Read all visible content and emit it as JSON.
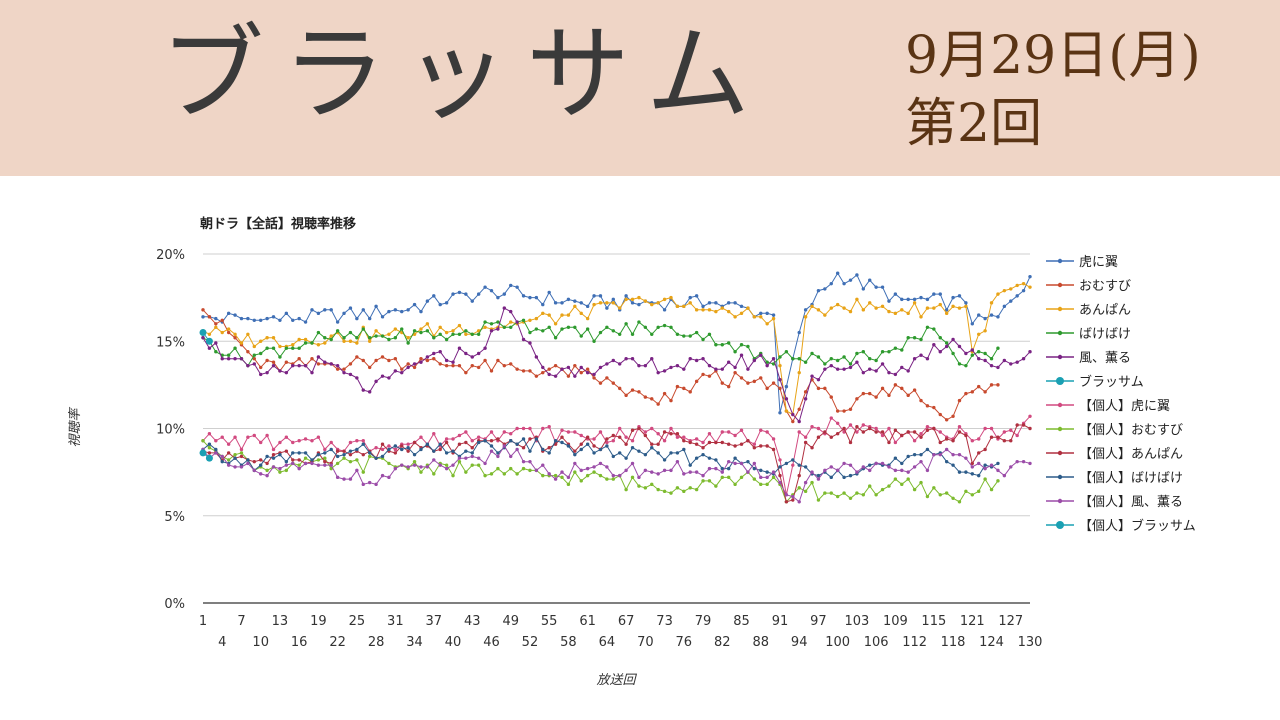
{
  "banner": {
    "title": "ブラッサム",
    "date": "9月29日(月)",
    "episode": "第2回"
  },
  "chart_data": {
    "type": "line",
    "title": "朝ドラ【全話】視聴率推移",
    "xlabel": "放送回",
    "ylabel": "視聴率",
    "xlim": [
      1,
      130
    ],
    "ylim": [
      0,
      20
    ],
    "x_ticks_top": [
      1,
      7,
      13,
      19,
      25,
      31,
      37,
      43,
      49,
      55,
      61,
      67,
      73,
      79,
      85,
      91,
      97,
      103,
      109,
      115,
      121,
      127
    ],
    "x_ticks_bottom": [
      4,
      10,
      16,
      22,
      28,
      34,
      40,
      46,
      52,
      58,
      64,
      70,
      76,
      82,
      88,
      94,
      100,
      106,
      112,
      118,
      124,
      130
    ],
    "y_ticks": [
      "0%",
      "5%",
      "10%",
      "15%",
      "20%"
    ],
    "y_tick_values": [
      0,
      5,
      10,
      15,
      20
    ],
    "grid": true,
    "legend_position": "right",
    "series": [
      {
        "name": "虎に翼",
        "color": "#3f6fb5",
        "marker": "small",
        "start": 1,
        "length": 130,
        "anchors": [
          [
            1,
            16.4
          ],
          [
            10,
            16.2
          ],
          [
            30,
            16.7
          ],
          [
            46,
            17.9
          ],
          [
            60,
            17.2
          ],
          [
            80,
            17.2
          ],
          [
            90,
            16.5
          ],
          [
            91,
            10.9
          ],
          [
            92,
            12.4
          ],
          [
            95,
            16.8
          ],
          [
            100,
            18.9
          ],
          [
            110,
            17.4
          ],
          [
            120,
            17.2
          ],
          [
            121,
            16.0
          ],
          [
            125,
            16.4
          ],
          [
            128,
            17.6
          ],
          [
            130,
            18.7
          ]
        ]
      },
      {
        "name": "おむすび",
        "color": "#c84a2e",
        "marker": "small",
        "start": 1,
        "length": 125,
        "anchors": [
          [
            1,
            16.8
          ],
          [
            5,
            15.5
          ],
          [
            10,
            13.5
          ],
          [
            30,
            13.9
          ],
          [
            50,
            13.4
          ],
          [
            60,
            13.2
          ],
          [
            72,
            11.4
          ],
          [
            80,
            13.0
          ],
          [
            91,
            12.3
          ],
          [
            93,
            10.4
          ],
          [
            96,
            12.8
          ],
          [
            100,
            11.0
          ],
          [
            110,
            12.3
          ],
          [
            118,
            10.7
          ],
          [
            120,
            12.0
          ],
          [
            125,
            12.5
          ]
        ]
      },
      {
        "name": "あんぱん",
        "color": "#e8a317",
        "marker": "small",
        "start": 1,
        "length": 130,
        "anchors": [
          [
            1,
            15.6
          ],
          [
            10,
            15.0
          ],
          [
            30,
            15.4
          ],
          [
            50,
            16.0
          ],
          [
            60,
            16.6
          ],
          [
            70,
            17.3
          ],
          [
            80,
            16.8
          ],
          [
            90,
            16.3
          ],
          [
            92,
            11.0
          ],
          [
            93,
            10.8
          ],
          [
            95,
            16.4
          ],
          [
            100,
            17.1
          ],
          [
            110,
            16.8
          ],
          [
            120,
            17.0
          ],
          [
            121,
            14.4
          ],
          [
            125,
            17.7
          ],
          [
            130,
            18.1
          ]
        ]
      },
      {
        "name": "ばけばけ",
        "color": "#2e9a2e",
        "marker": "small",
        "start": 1,
        "length": 125,
        "anchors": [
          [
            1,
            15.2
          ],
          [
            7,
            14.0
          ],
          [
            20,
            15.2
          ],
          [
            40,
            15.4
          ],
          [
            50,
            16.1
          ],
          [
            60,
            15.3
          ],
          [
            70,
            15.8
          ],
          [
            80,
            15.4
          ],
          [
            90,
            13.7
          ],
          [
            92,
            14.4
          ],
          [
            100,
            13.9
          ],
          [
            110,
            14.5
          ],
          [
            115,
            15.7
          ],
          [
            120,
            13.6
          ],
          [
            125,
            14.6
          ]
        ]
      },
      {
        "name": "風、薫る",
        "color": "#7a2384",
        "marker": "small",
        "start": 1,
        "length": 130,
        "anchors": [
          [
            1,
            15.2
          ],
          [
            5,
            14.0
          ],
          [
            10,
            13.1
          ],
          [
            20,
            13.8
          ],
          [
            27,
            12.1
          ],
          [
            35,
            13.8
          ],
          [
            45,
            14.6
          ],
          [
            48,
            16.9
          ],
          [
            55,
            13.1
          ],
          [
            60,
            13.5
          ],
          [
            63,
            13.5
          ],
          [
            70,
            13.6
          ],
          [
            80,
            13.6
          ],
          [
            90,
            14.0
          ],
          [
            92,
            11.7
          ],
          [
            94,
            10.4
          ],
          [
            96,
            13.0
          ],
          [
            100,
            13.4
          ],
          [
            110,
            13.5
          ],
          [
            118,
            15.1
          ],
          [
            125,
            13.5
          ],
          [
            130,
            14.4
          ]
        ]
      },
      {
        "name": "ブラッサム",
        "color": "#1aa0b3",
        "marker": "large",
        "start": 1,
        "length": 2,
        "values": [
          15.5,
          15.0
        ]
      },
      {
        "name": "【個人】虎に翼",
        "color": "#d24a80",
        "marker": "small",
        "start": 1,
        "length": 130,
        "anchors": [
          [
            1,
            9.3
          ],
          [
            10,
            9.2
          ],
          [
            30,
            9.0
          ],
          [
            46,
            9.8
          ],
          [
            60,
            9.6
          ],
          [
            80,
            9.7
          ],
          [
            90,
            9.4
          ],
          [
            92,
            6.2
          ],
          [
            94,
            9.8
          ],
          [
            100,
            10.3
          ],
          [
            110,
            9.6
          ],
          [
            120,
            9.7
          ],
          [
            128,
            9.6
          ],
          [
            130,
            10.7
          ]
        ]
      },
      {
        "name": "【個人】おむすび",
        "color": "#7dbb2e",
        "marker": "small",
        "start": 1,
        "length": 125,
        "anchors": [
          [
            1,
            9.3
          ],
          [
            10,
            7.8
          ],
          [
            30,
            8.0
          ],
          [
            50,
            7.4
          ],
          [
            65,
            7.1
          ],
          [
            70,
            6.6
          ],
          [
            80,
            7.0
          ],
          [
            90,
            7.2
          ],
          [
            92,
            5.8
          ],
          [
            94,
            6.6
          ],
          [
            100,
            6.1
          ],
          [
            110,
            6.8
          ],
          [
            118,
            6.0
          ],
          [
            120,
            6.4
          ],
          [
            125,
            7.0
          ]
        ]
      },
      {
        "name": "【個人】あんぱん",
        "color": "#b03040",
        "marker": "small",
        "start": 1,
        "length": 130,
        "anchors": [
          [
            1,
            8.7
          ],
          [
            10,
            8.2
          ],
          [
            30,
            8.7
          ],
          [
            50,
            9.1
          ],
          [
            60,
            9.1
          ],
          [
            70,
            9.6
          ],
          [
            80,
            9.2
          ],
          [
            90,
            8.8
          ],
          [
            92,
            5.8
          ],
          [
            93,
            5.9
          ],
          [
            95,
            9.2
          ],
          [
            100,
            9.7
          ],
          [
            110,
            9.6
          ],
          [
            120,
            9.6
          ],
          [
            121,
            8.0
          ],
          [
            125,
            9.5
          ],
          [
            130,
            10.0
          ]
        ]
      },
      {
        "name": "【個人】ばけばけ",
        "color": "#2d5c8a",
        "marker": "small",
        "start": 1,
        "length": 125,
        "anchors": [
          [
            1,
            8.8
          ],
          [
            7,
            7.9
          ],
          [
            20,
            8.6
          ],
          [
            40,
            8.7
          ],
          [
            50,
            9.1
          ],
          [
            60,
            8.8
          ],
          [
            70,
            8.5
          ],
          [
            80,
            8.3
          ],
          [
            90,
            7.4
          ],
          [
            92,
            8.0
          ],
          [
            100,
            7.6
          ],
          [
            110,
            8.0
          ],
          [
            115,
            8.5
          ],
          [
            120,
            7.5
          ],
          [
            125,
            8.0
          ]
        ]
      },
      {
        "name": "【個人】風、薫る",
        "color": "#9b4ca8",
        "marker": "small",
        "start": 1,
        "length": 130,
        "anchors": [
          [
            1,
            8.8
          ],
          [
            5,
            7.9
          ],
          [
            10,
            7.4
          ],
          [
            20,
            7.9
          ],
          [
            27,
            6.9
          ],
          [
            35,
            7.8
          ],
          [
            45,
            8.0
          ],
          [
            48,
            9.0
          ],
          [
            55,
            7.4
          ],
          [
            60,
            7.6
          ],
          [
            70,
            7.6
          ],
          [
            80,
            7.7
          ],
          [
            90,
            7.5
          ],
          [
            92,
            6.2
          ],
          [
            94,
            5.8
          ],
          [
            96,
            7.5
          ],
          [
            100,
            7.6
          ],
          [
            110,
            7.6
          ],
          [
            118,
            8.5
          ],
          [
            125,
            7.6
          ],
          [
            130,
            8.0
          ]
        ]
      },
      {
        "name": "【個人】ブラッサム",
        "color": "#1aa0b3",
        "marker": "large",
        "start": 1,
        "length": 2,
        "values": [
          8.6,
          8.3
        ]
      }
    ]
  }
}
